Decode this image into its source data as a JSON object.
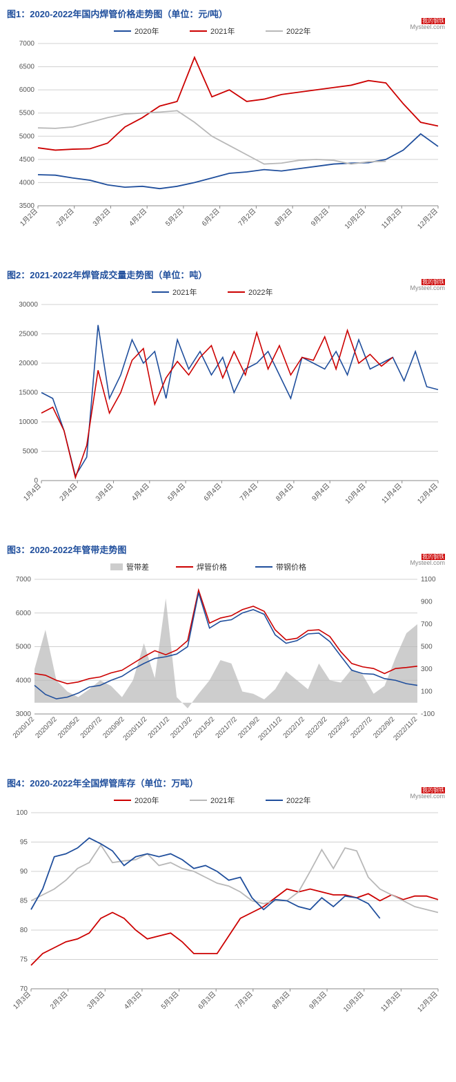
{
  "watermark": {
    "brand": "我的钢铁",
    "site": "Mysteel.com"
  },
  "chart1": {
    "type": "line",
    "title": "图1：2020-2022年国内焊管价格走势图（单位：元/吨）",
    "title_color": "#1f4e9c",
    "title_fontsize": 13,
    "background_color": "#ffffff",
    "grid_color": "#d0d0d0",
    "ylim": [
      3500,
      7000
    ],
    "ytick_step": 500,
    "x_categories": [
      "1月2日",
      "2月2日",
      "3月2日",
      "4月2日",
      "5月2日",
      "6月2日",
      "7月2日",
      "8月2日",
      "9月2日",
      "10月2日",
      "11月2日",
      "12月2日"
    ],
    "x_label_fontsize": 10,
    "y_label_fontsize": 10,
    "line_width": 1.8,
    "series": [
      {
        "name": "2020年",
        "color": "#1f4e9c",
        "values": [
          4170,
          4160,
          4100,
          4050,
          3950,
          3900,
          3920,
          3870,
          3920,
          4000,
          4100,
          4200,
          4230,
          4280,
          4250,
          4300,
          4350,
          4400,
          4420,
          4430,
          4500,
          4700,
          5050,
          4780
        ]
      },
      {
        "name": "2021年",
        "color": "#cc0000",
        "values": [
          4750,
          4700,
          4720,
          4730,
          4850,
          5200,
          5400,
          5650,
          5750,
          6700,
          5850,
          6000,
          5750,
          5800,
          5900,
          5950,
          6000,
          6050,
          6100,
          6200,
          6150,
          5700,
          5300,
          5220
        ]
      },
      {
        "name": "2022年",
        "color": "#b8b8b8",
        "values": [
          5180,
          5170,
          5200,
          5300,
          5400,
          5480,
          5500,
          5520,
          5550,
          5300,
          5000,
          4800,
          4600,
          4400,
          4420,
          4480,
          4500,
          4480,
          4400,
          4450,
          4460,
          null,
          null,
          null
        ]
      }
    ],
    "legend_position": "top-center"
  },
  "chart2": {
    "type": "line",
    "title": "图2：2021-2022年焊管成交量走势图（单位：吨）",
    "title_color": "#1f4e9c",
    "title_fontsize": 13,
    "background_color": "#ffffff",
    "grid_color": "#d0d0d0",
    "ylim": [
      0,
      30000
    ],
    "ytick_step": 5000,
    "x_categories": [
      "1月4日",
      "2月4日",
      "3月4日",
      "4月4日",
      "5月4日",
      "6月4日",
      "7月4日",
      "8月4日",
      "9月4日",
      "10月4日",
      "11月4日",
      "12月4日"
    ],
    "x_label_fontsize": 10,
    "y_label_fontsize": 10,
    "line_width": 1.6,
    "series": [
      {
        "name": "2021年",
        "color": "#1f4e9c",
        "values": [
          15000,
          14000,
          8500,
          800,
          4000,
          26500,
          14000,
          18000,
          24000,
          20000,
          22000,
          14000,
          24000,
          19000,
          22000,
          18000,
          21000,
          15000,
          19000,
          20000,
          22000,
          18000,
          14000,
          21000,
          20000,
          19000,
          22000,
          18000,
          24000,
          19000,
          20000,
          21000,
          17000,
          22000,
          16000,
          15500
        ]
      },
      {
        "name": "2022年",
        "color": "#cc0000",
        "values": [
          11500,
          12500,
          8500,
          500,
          6000,
          18800,
          11500,
          15000,
          20500,
          22500,
          13000,
          17500,
          20300,
          18000,
          21000,
          23000,
          17500,
          22000,
          18000,
          25200,
          19000,
          23000,
          18000,
          21000,
          20500,
          24500,
          19000,
          25600,
          20000,
          21500,
          19500,
          21000,
          null,
          null,
          null,
          null
        ]
      }
    ],
    "legend_position": "top-center"
  },
  "chart3": {
    "type": "combo",
    "title": "图3：2020-2022年管带走势图",
    "title_color": "#1f4e9c",
    "title_fontsize": 13,
    "background_color": "#ffffff",
    "grid_color": "#d0d0d0",
    "ylim_left": [
      3000,
      7000
    ],
    "ytick_left_step": 1000,
    "ylim_right": [
      -100,
      1100
    ],
    "ytick_right_step": 200,
    "x_categories": [
      "2020/1/2",
      "2020/3/2",
      "2020/5/2",
      "2020/7/2",
      "2020/9/2",
      "2020/11/2",
      "2021/1/2",
      "2021/3/2",
      "2021/5/2",
      "2021/7/2",
      "2021/9/2",
      "2021/11/2",
      "2022/1/2",
      "2022/3/2",
      "2022/5/2",
      "2022/7/2",
      "2022/9/2",
      "2022/11/2"
    ],
    "x_label_fontsize": 10,
    "y_label_fontsize": 10,
    "area_series": {
      "name": "管带差",
      "color": "#b8b8b8",
      "fill_opacity": 0.7,
      "axis": "right",
      "values": [
        300,
        650,
        200,
        100,
        50,
        120,
        200,
        150,
        50,
        200,
        530,
        220,
        930,
        50,
        -50,
        80,
        200,
        380,
        350,
        100,
        80,
        30,
        120,
        280,
        200,
        120,
        350,
        200,
        180,
        300,
        250,
        80,
        150,
        400,
        620,
        700
      ]
    },
    "line_series": [
      {
        "name": "焊管价格",
        "color": "#cc0000",
        "axis": "left",
        "line_width": 1.6,
        "values": [
          4200,
          4150,
          4000,
          3900,
          3950,
          4050,
          4100,
          4220,
          4300,
          4500,
          4700,
          4880,
          4760,
          4900,
          5180,
          6680,
          5700,
          5850,
          5920,
          6100,
          6200,
          6050,
          5500,
          5200,
          5250,
          5480,
          5500,
          5300,
          4850,
          4500,
          4400,
          4350,
          4200,
          4350,
          4380,
          4420
        ]
      },
      {
        "name": "带钢价格",
        "color": "#1f4e9c",
        "axis": "left",
        "line_width": 1.6,
        "values": [
          3850,
          3580,
          3450,
          3500,
          3620,
          3800,
          3850,
          4000,
          4120,
          4330,
          4500,
          4650,
          4700,
          4780,
          5000,
          6600,
          5550,
          5750,
          5800,
          6000,
          6100,
          5960,
          5350,
          5100,
          5180,
          5380,
          5400,
          5150,
          4720,
          4300,
          4200,
          4180,
          4050,
          4000,
          3900,
          3850
        ]
      }
    ],
    "legend_position": "top-center"
  },
  "chart4": {
    "type": "line",
    "title": "图4：2020-2022年全国焊管库存（单位：万吨）",
    "title_color": "#1f4e9c",
    "title_fontsize": 13,
    "background_color": "#ffffff",
    "grid_color": "#d0d0d0",
    "ylim": [
      70,
      100
    ],
    "ytick_step": 5,
    "x_categories": [
      "1月3日",
      "2月3日",
      "3月3日",
      "4月3日",
      "5月3日",
      "6月3日",
      "7月3日",
      "8月3日",
      "9月3日",
      "10月3日",
      "11月3日",
      "12月3日"
    ],
    "x_label_fontsize": 10,
    "y_label_fontsize": 10,
    "line_width": 1.8,
    "series": [
      {
        "name": "2020年",
        "color": "#cc0000",
        "values": [
          74,
          76,
          77,
          78,
          78.5,
          79.5,
          82,
          83,
          82,
          80,
          78.5,
          79,
          79.5,
          78,
          76,
          76,
          76,
          79,
          82,
          83,
          84,
          85.5,
          87,
          86.5,
          87,
          86.5,
          86,
          86,
          85.5,
          86.2,
          85,
          86,
          85.2,
          85.8,
          85.8,
          85.2
        ]
      },
      {
        "name": "2021年",
        "color": "#b8b8b8",
        "values": [
          85,
          86,
          87,
          88.5,
          90.5,
          91.5,
          94.5,
          91.5,
          91.8,
          92,
          93,
          91,
          91.5,
          90.5,
          90,
          89,
          88,
          87.5,
          86.5,
          85,
          84.5,
          85,
          85,
          86.5,
          90,
          93.7,
          90.5,
          94,
          93.5,
          89,
          87,
          86,
          85,
          84,
          83.5,
          83
        ]
      },
      {
        "name": "2022年",
        "color": "#1f4e9c",
        "values": [
          83.5,
          87,
          92.5,
          93,
          94,
          95.7,
          94.7,
          93.5,
          91,
          92.5,
          93,
          92.5,
          93,
          92,
          90.5,
          91,
          90,
          88.5,
          89,
          85.5,
          83.5,
          85.2,
          85,
          84,
          83.5,
          85.5,
          84,
          85.8,
          85.5,
          84.5,
          82,
          null,
          null,
          null,
          null,
          null
        ]
      }
    ],
    "legend_position": "top-center"
  }
}
